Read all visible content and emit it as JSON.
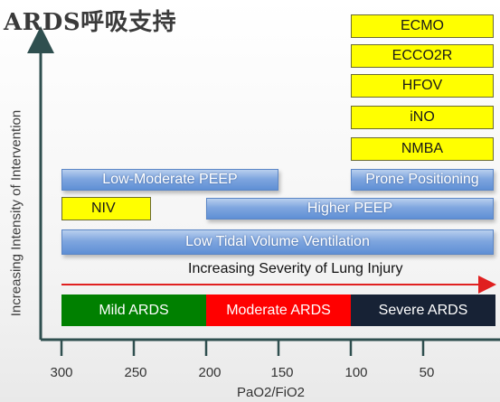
{
  "title": "ARDS呼吸支持",
  "y_axis_label": "Increasing Intensity of Intervention",
  "x_axis_label": "PaO2/FiO2",
  "x_ticks": [
    "300",
    "250",
    "200",
    "150",
    "100",
    "50"
  ],
  "severity_arrow_label": "Increasing Severity of Lung Injury",
  "severity": [
    {
      "label": "Mild ARDS",
      "color": "#008000"
    },
    {
      "label": "Moderate ARDS",
      "color": "#ff0000"
    },
    {
      "label": "Severe ARDS",
      "color": "#172235"
    }
  ],
  "interventions": {
    "ecmo": "ECMO",
    "ecco2r": "ECCO2R",
    "hfov": "HFOV",
    "ino": "iNO",
    "nmba": "NMBA",
    "low_mod_peep": "Low-Moderate PEEP",
    "prone": "Prone Positioning",
    "niv": "NIV",
    "higher_peep": "Higher PEEP",
    "low_tidal": "Low Tidal Volume Ventilation"
  },
  "colors": {
    "blue_bar": "#6f9ad9",
    "yellow_bar": "#ffff00",
    "arrow_red": "#e02020",
    "axis": "#2f4f4f"
  }
}
